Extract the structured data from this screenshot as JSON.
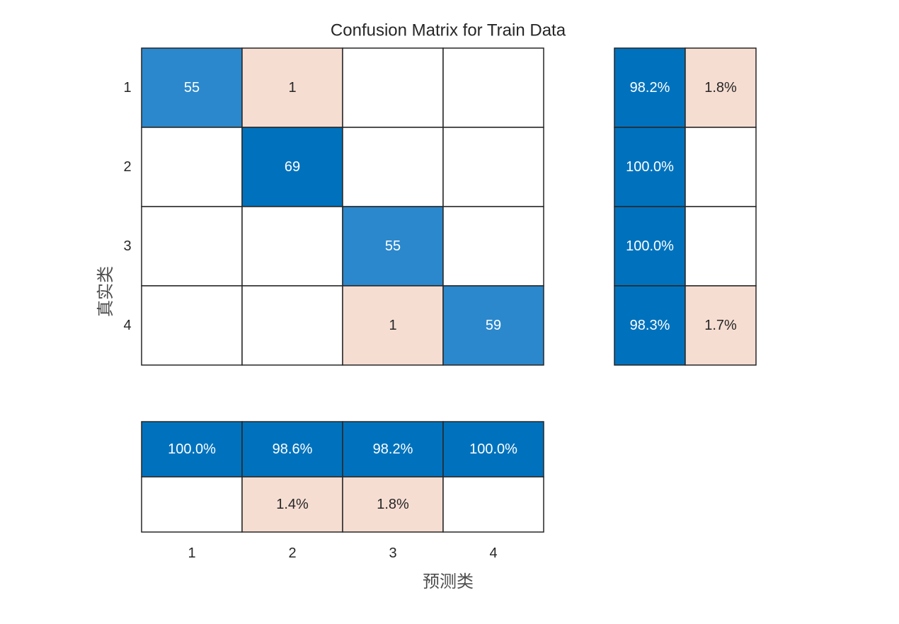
{
  "chart_data": {
    "type": "heatmap",
    "title": "Confusion Matrix for Train Data",
    "xlabel": "预测类",
    "ylabel": "真实类",
    "classes": [
      "1",
      "2",
      "3",
      "4"
    ],
    "matrix": [
      [
        55,
        1,
        0,
        0
      ],
      [
        0,
        69,
        0,
        0
      ],
      [
        0,
        0,
        55,
        0
      ],
      [
        0,
        0,
        1,
        59
      ]
    ],
    "row_summary": [
      [
        "98.2%",
        "1.8%"
      ],
      [
        "100.0%",
        ""
      ],
      [
        "100.0%",
        ""
      ],
      [
        "98.3%",
        "1.7%"
      ]
    ],
    "column_summary": [
      [
        "100.0%",
        "98.6%",
        "98.2%",
        "100.0%"
      ],
      [
        "",
        "1.4%",
        "1.8%",
        ""
      ]
    ],
    "colors": {
      "correct_strong": "#0072bd",
      "correct_medium": "#2b88cc",
      "incorrect": "#f6ddd2",
      "empty": "#ffffff",
      "grid": "#262626",
      "text_light": "#ffffff",
      "text_dark": "#262626"
    }
  }
}
